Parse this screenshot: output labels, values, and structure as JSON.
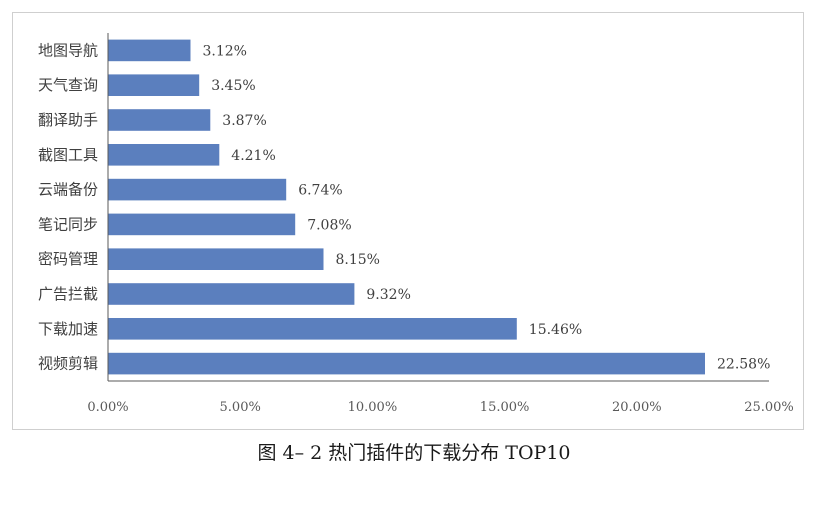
{
  "caption": "图 4– 2 热门插件的下载分布 TOP10",
  "chart_data": {
    "type": "bar",
    "orientation": "horizontal",
    "categories": [
      "地图导航",
      "天气查询",
      "翻译助手",
      "截图工具",
      "云端备份",
      "笔记同步",
      "密码管理",
      "广告拦截",
      "下载加速",
      "视频剪辑"
    ],
    "values": [
      3.12,
      3.45,
      3.87,
      4.21,
      6.74,
      7.08,
      8.15,
      9.32,
      15.46,
      22.58
    ],
    "value_labels": [
      "3.12%",
      "3.45%",
      "3.87%",
      "4.21%",
      "6.74%",
      "7.08%",
      "8.15%",
      "9.32%",
      "15.46%",
      "22.58%"
    ],
    "xlim": [
      0,
      25
    ],
    "x_ticks": [
      "0.00%",
      "5.00%",
      "10.00%",
      "15.00%",
      "20.00%",
      "25.00%"
    ],
    "title": "",
    "xlabel": "",
    "ylabel": "",
    "grid": false,
    "legend": "none",
    "bar_color": "#5b7fbe"
  }
}
